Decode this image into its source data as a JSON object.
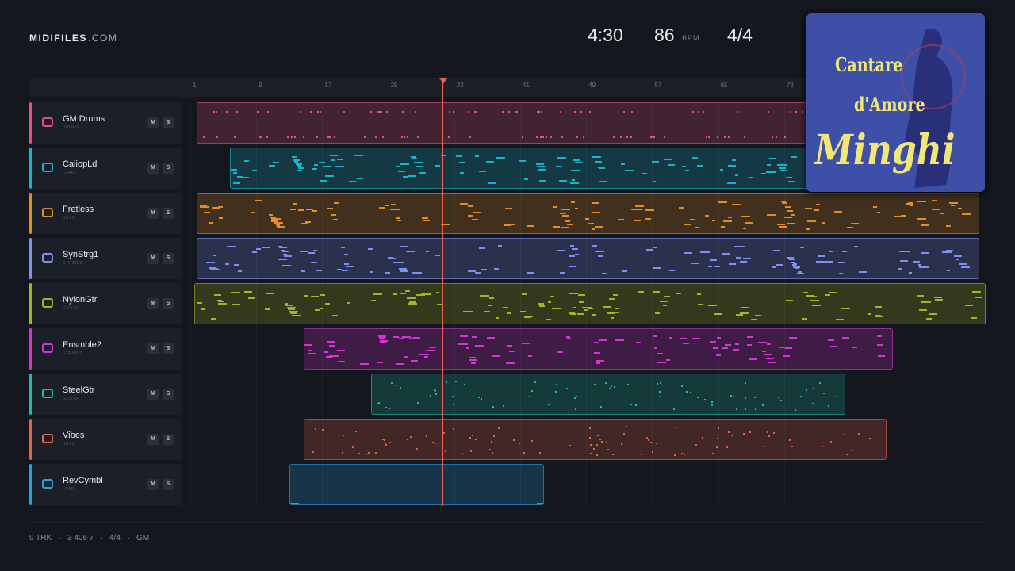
{
  "header": {
    "brand": "MIDIFILES",
    "domain": ".COM",
    "time": "4:30",
    "tempo": "86",
    "tempo_unit": "BPM",
    "meter": "4/4"
  },
  "album": {
    "line1": "Cantare",
    "line2": "d'Amore",
    "artist": "Minghi"
  },
  "ruler": {
    "bars": [
      1,
      9,
      17,
      25,
      33,
      41,
      49,
      57,
      65,
      73
    ]
  },
  "tracks": [
    {
      "name": "GM Drums",
      "kind": "DRUMS",
      "mute": "M",
      "solo": "S"
    },
    {
      "name": "CaliopLd",
      "kind": "LEAD",
      "mute": "M",
      "solo": "S"
    },
    {
      "name": "Fretless",
      "kind": "BASS",
      "mute": "M",
      "solo": "S"
    },
    {
      "name": "SynStrg1",
      "kind": "STRINGS",
      "mute": "M",
      "solo": "S"
    },
    {
      "name": "NylonGtr",
      "kind": "GUITAR",
      "mute": "M",
      "solo": "S"
    },
    {
      "name": "Ensmble2",
      "kind": "STRINGS",
      "mute": "M",
      "solo": "S"
    },
    {
      "name": "SteelGtr",
      "kind": "GUITAR",
      "mute": "M",
      "solo": "S"
    },
    {
      "name": "Vibes",
      "kind": "KEYS",
      "mute": "M",
      "solo": "S"
    },
    {
      "name": "RevCymbl",
      "kind": "LEAD",
      "mute": "M",
      "solo": "S"
    }
  ],
  "footer": {
    "tracks": "9 TRK",
    "notes": "3 406 ♪",
    "meter": "4/4",
    "standard": "GM"
  }
}
